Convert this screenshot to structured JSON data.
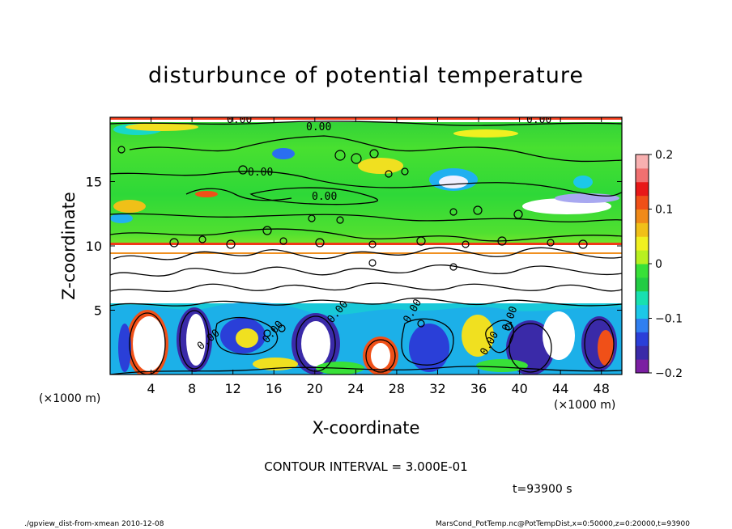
{
  "chart_data": {
    "type": "heatmap",
    "title": "disturbunce of potential temperature",
    "xlabel": "X-coordinate",
    "ylabel": "Z-coordinate",
    "x_unit_left": "(×1000 m)",
    "x_unit_right": "(×1000 m)",
    "xlim": [
      0,
      50
    ],
    "ylim": [
      0,
      20
    ],
    "xticks": [
      4,
      8,
      12,
      16,
      20,
      24,
      28,
      32,
      36,
      40,
      44,
      48
    ],
    "yticks": [
      5,
      10,
      15
    ],
    "colorbar": {
      "range": [
        -0.2,
        0.2
      ],
      "ticks": [
        {
          "value": 0.2,
          "label": "0.2"
        },
        {
          "value": 0.1,
          "label": "0.1"
        },
        {
          "value": 0,
          "label": "0"
        },
        {
          "value": -0.1,
          "label": "−0.1"
        },
        {
          "value": -0.2,
          "label": "−0.2"
        }
      ],
      "colors": [
        "#7b1fa2",
        "#3a2aa8",
        "#2a3fd8",
        "#2f7ff0",
        "#1cc8e8",
        "#18e0b0",
        "#22cc44",
        "#38e038",
        "#b8f020",
        "#f0f020",
        "#f0c018",
        "#f08a18",
        "#f05018",
        "#e81818",
        "#f07070",
        "#f8b0b0"
      ]
    },
    "contour_labels": [
      "0.00",
      "0.00",
      "0.00",
      "0.00",
      "0.00",
      "0.00",
      "0.00",
      "0.00",
      "0.00",
      "0.00",
      "0.00"
    ],
    "contour_interval_text": "CONTOUR INTERVAL = 3.000E-01",
    "time_text": "t=93900  s"
  },
  "footer": {
    "left": "./gpview_dist-from-xmean  2010-12-08",
    "right": "MarsCond_PotTemp.nc@PotTempDist,x=0:50000,z=0:20000,t=93900"
  }
}
